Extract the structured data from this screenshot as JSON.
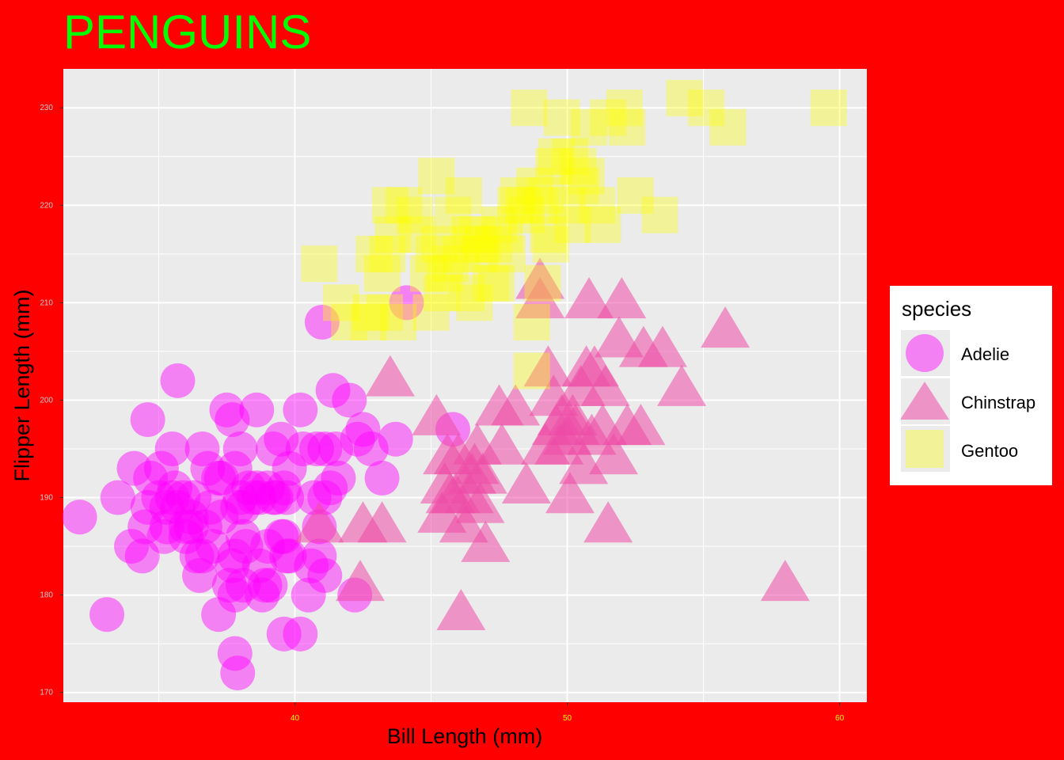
{
  "chart_data": {
    "type": "scatter",
    "title": "PENGUINS",
    "xlabel": "Bill Length (mm)",
    "ylabel": "Flipper Length (mm)",
    "xlim": [
      31.5,
      61.0
    ],
    "ylim": [
      169.0,
      234.0
    ],
    "x_ticks": [
      40,
      50,
      60
    ],
    "y_ticks": [
      170,
      180,
      190,
      200,
      210,
      220,
      230
    ],
    "grid": true,
    "legend": {
      "title": "species",
      "position": "right"
    },
    "colors": {
      "background": "#ff0000",
      "panel": "#ebebeb",
      "title": "#00ff00",
      "x_tick_labels": "#ffff00",
      "y_tick_labels": "#cccccc"
    },
    "series": [
      {
        "name": "Adelie",
        "shape": "circle",
        "color": "#ff00ff",
        "alpha": 0.45,
        "points": [
          [
            32.1,
            188
          ],
          [
            33.1,
            178
          ],
          [
            33.5,
            190
          ],
          [
            34.0,
            185
          ],
          [
            34.1,
            193
          ],
          [
            34.4,
            184
          ],
          [
            34.5,
            187
          ],
          [
            34.6,
            189
          ],
          [
            34.6,
            198
          ],
          [
            34.7,
            192
          ],
          [
            35.0,
            190
          ],
          [
            35.1,
            193
          ],
          [
            35.2,
            186
          ],
          [
            35.3,
            187
          ],
          [
            35.3,
            189
          ],
          [
            35.5,
            190
          ],
          [
            35.5,
            195
          ],
          [
            35.6,
            191
          ],
          [
            35.7,
            189
          ],
          [
            35.7,
            202
          ],
          [
            35.9,
            190
          ],
          [
            36.0,
            186
          ],
          [
            36.0,
            187
          ],
          [
            36.2,
            187
          ],
          [
            36.2,
            188
          ],
          [
            36.3,
            190
          ],
          [
            36.4,
            184
          ],
          [
            36.5,
            182
          ],
          [
            36.6,
            184
          ],
          [
            36.6,
            195
          ],
          [
            36.7,
            187
          ],
          [
            36.8,
            193
          ],
          [
            36.9,
            189
          ],
          [
            37.0,
            185
          ],
          [
            37.2,
            178
          ],
          [
            37.2,
            192
          ],
          [
            37.3,
            188
          ],
          [
            37.3,
            192
          ],
          [
            37.5,
            199
          ],
          [
            37.6,
            181
          ],
          [
            37.7,
            183
          ],
          [
            37.7,
            198
          ],
          [
            37.8,
            174
          ],
          [
            37.8,
            180
          ],
          [
            37.8,
            184
          ],
          [
            37.8,
            193
          ],
          [
            37.9,
            172
          ],
          [
            37.9,
            189
          ],
          [
            38.0,
            190
          ],
          [
            38.0,
            195
          ],
          [
            38.1,
            181
          ],
          [
            38.1,
            186
          ],
          [
            38.1,
            189
          ],
          [
            38.2,
            185
          ],
          [
            38.3,
            191
          ],
          [
            38.5,
            190
          ],
          [
            38.6,
            191
          ],
          [
            38.6,
            199
          ],
          [
            38.7,
            183
          ],
          [
            38.7,
            190
          ],
          [
            38.8,
            180
          ],
          [
            38.9,
            181
          ],
          [
            39.0,
            185
          ],
          [
            39.0,
            191
          ],
          [
            39.1,
            181
          ],
          [
            39.2,
            190
          ],
          [
            39.2,
            195
          ],
          [
            39.3,
            190
          ],
          [
            39.5,
            186
          ],
          [
            39.5,
            196
          ],
          [
            39.6,
            176
          ],
          [
            39.6,
            186
          ],
          [
            39.6,
            191
          ],
          [
            39.7,
            184
          ],
          [
            39.7,
            190
          ],
          [
            39.8,
            184
          ],
          [
            39.8,
            193
          ],
          [
            40.2,
            176
          ],
          [
            40.2,
            199
          ],
          [
            40.3,
            195
          ],
          [
            40.5,
            180
          ],
          [
            40.6,
            183
          ],
          [
            40.7,
            190
          ],
          [
            40.8,
            195
          ],
          [
            40.9,
            184
          ],
          [
            40.9,
            187
          ],
          [
            41.0,
            208
          ],
          [
            41.1,
            182
          ],
          [
            41.1,
            190
          ],
          [
            41.1,
            195
          ],
          [
            41.3,
            191
          ],
          [
            41.4,
            201
          ],
          [
            41.5,
            195
          ],
          [
            41.6,
            192
          ],
          [
            42.0,
            200
          ],
          [
            42.2,
            180
          ],
          [
            42.3,
            196
          ],
          [
            42.5,
            197
          ],
          [
            42.8,
            195
          ],
          [
            43.2,
            192
          ],
          [
            43.7,
            196
          ],
          [
            44.1,
            210
          ],
          [
            45.8,
            197
          ]
        ]
      },
      {
        "name": "Chinstrap",
        "shape": "triangle",
        "color": "#ee4aa6",
        "alpha": 0.55,
        "points": [
          [
            40.9,
            187
          ],
          [
            42.4,
            181
          ],
          [
            42.5,
            187
          ],
          [
            43.2,
            187
          ],
          [
            43.5,
            202
          ],
          [
            45.2,
            198
          ],
          [
            45.4,
            188
          ],
          [
            45.5,
            191
          ],
          [
            45.6,
            194
          ],
          [
            45.7,
            190
          ],
          [
            45.9,
            190
          ],
          [
            46.0,
            194
          ],
          [
            46.1,
            178
          ],
          [
            46.2,
            187
          ],
          [
            46.4,
            190
          ],
          [
            46.5,
            192
          ],
          [
            46.6,
            193
          ],
          [
            46.7,
            195
          ],
          [
            46.8,
            189
          ],
          [
            46.9,
            192
          ],
          [
            47.0,
            185
          ],
          [
            47.5,
            199
          ],
          [
            47.6,
            195
          ],
          [
            48.1,
            199
          ],
          [
            48.5,
            191
          ],
          [
            49.0,
            212
          ],
          [
            49.0,
            210
          ],
          [
            49.2,
            195
          ],
          [
            49.3,
            203
          ],
          [
            49.5,
            200
          ],
          [
            49.6,
            197
          ],
          [
            49.7,
            195
          ],
          [
            49.8,
            198
          ],
          [
            50.0,
            196
          ],
          [
            50.1,
            190
          ],
          [
            50.2,
            198
          ],
          [
            50.3,
            197
          ],
          [
            50.5,
            201
          ],
          [
            50.6,
            193
          ],
          [
            50.7,
            203
          ],
          [
            50.8,
            210
          ],
          [
            50.9,
            196
          ],
          [
            51.0,
            203
          ],
          [
            51.3,
            197
          ],
          [
            51.4,
            201
          ],
          [
            51.5,
            187
          ],
          [
            51.7,
            194
          ],
          [
            51.9,
            206
          ],
          [
            52.0,
            210
          ],
          [
            52.2,
            197
          ],
          [
            52.7,
            197
          ],
          [
            52.8,
            205
          ],
          [
            53.5,
            205
          ],
          [
            54.2,
            201
          ],
          [
            55.8,
            207
          ],
          [
            58.0,
            181
          ]
        ]
      },
      {
        "name": "Gentoo",
        "shape": "square",
        "color": "#ffff00",
        "alpha": 0.35,
        "points": [
          [
            40.9,
            214
          ],
          [
            41.7,
            210
          ],
          [
            42.0,
            208
          ],
          [
            42.7,
            208
          ],
          [
            42.8,
            209
          ],
          [
            42.9,
            215
          ],
          [
            43.2,
            213
          ],
          [
            43.3,
            209
          ],
          [
            43.4,
            215
          ],
          [
            43.5,
            220
          ],
          [
            43.6,
            217
          ],
          [
            43.8,
            208
          ],
          [
            44.0,
            220
          ],
          [
            44.4,
            219
          ],
          [
            44.5,
            217
          ],
          [
            44.9,
            213
          ],
          [
            45.0,
            209
          ],
          [
            45.1,
            215
          ],
          [
            45.2,
            223
          ],
          [
            45.3,
            216
          ],
          [
            45.4,
            211
          ],
          [
            45.5,
            213
          ],
          [
            45.7,
            214
          ],
          [
            45.8,
            219
          ],
          [
            46.1,
            215
          ],
          [
            46.2,
            221
          ],
          [
            46.3,
            211
          ],
          [
            46.4,
            217
          ],
          [
            46.5,
            216
          ],
          [
            46.6,
            210
          ],
          [
            46.7,
            217
          ],
          [
            46.8,
            215
          ],
          [
            46.9,
            216
          ],
          [
            47.2,
            212
          ],
          [
            47.3,
            216
          ],
          [
            47.4,
            212
          ],
          [
            47.5,
            218
          ],
          [
            47.7,
            217
          ],
          [
            47.8,
            215
          ],
          [
            48.1,
            220
          ],
          [
            48.2,
            221
          ],
          [
            48.4,
            220
          ],
          [
            48.5,
            219
          ],
          [
            48.6,
            230
          ],
          [
            48.7,
            208
          ],
          [
            48.8,
            222
          ],
          [
            49.0,
            220
          ],
          [
            49.1,
            212
          ],
          [
            49.2,
            221
          ],
          [
            49.3,
            217
          ],
          [
            49.4,
            216
          ],
          [
            49.5,
            224
          ],
          [
            49.6,
            225
          ],
          [
            49.8,
            229
          ],
          [
            50.0,
            220
          ],
          [
            50.1,
            225
          ],
          [
            50.2,
            218
          ],
          [
            50.4,
            224
          ],
          [
            50.5,
            222
          ],
          [
            50.7,
            223
          ],
          [
            50.8,
            228
          ],
          [
            51.1,
            220
          ],
          [
            51.3,
            218
          ],
          [
            51.5,
            229
          ],
          [
            52.1,
            230
          ],
          [
            52.2,
            228
          ],
          [
            52.5,
            221
          ],
          [
            53.4,
            219
          ],
          [
            54.3,
            231
          ],
          [
            55.1,
            230
          ],
          [
            55.9,
            228
          ],
          [
            59.6,
            230
          ],
          [
            48.7,
            203
          ]
        ]
      }
    ]
  },
  "legend": {
    "title": "species",
    "items": [
      {
        "label": "Adelie",
        "shape": "circle",
        "color": "#ff00ff"
      },
      {
        "label": "Chinstrap",
        "shape": "triangle",
        "color": "#ee4aa6"
      },
      {
        "label": "Gentoo",
        "shape": "square",
        "color": "#ffff00"
      }
    ]
  }
}
